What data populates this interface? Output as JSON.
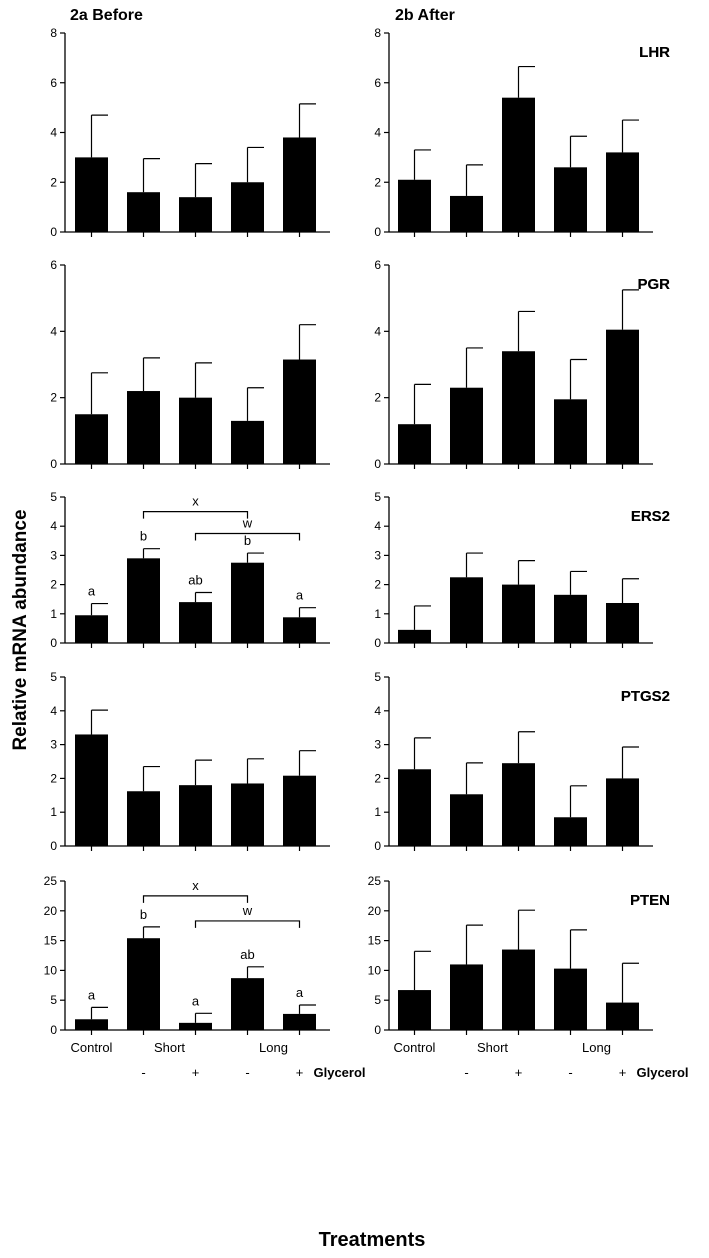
{
  "figure": {
    "col_titles": [
      "2a Before",
      "2b After"
    ],
    "ylabel": "Relative mRNA abundance",
    "xlabel": "Treatments",
    "x_groups": [
      "Control",
      "Short",
      "Long"
    ],
    "glycerol_signs": [
      "-",
      "+",
      "-",
      "+"
    ],
    "glycerol_label": "Glycerol"
  },
  "chart_data": [
    {
      "type": "bar",
      "gene": "LHR",
      "panel": "2a Before",
      "categories": [
        "Control",
        "Short -",
        "Short +",
        "Long -",
        "Long +"
      ],
      "values": [
        3.0,
        1.6,
        1.4,
        2.0,
        3.8
      ],
      "errors": [
        1.7,
        1.35,
        1.35,
        1.4,
        1.35
      ],
      "ylim": [
        0,
        8
      ],
      "yticks": [
        0,
        2,
        4,
        6,
        8
      ],
      "letters": []
    },
    {
      "type": "bar",
      "gene": "LHR",
      "panel": "2b After",
      "categories": [
        "Control",
        "Short -",
        "Short +",
        "Long -",
        "Long +"
      ],
      "values": [
        2.1,
        1.45,
        5.4,
        2.6,
        3.2
      ],
      "errors": [
        1.2,
        1.25,
        1.25,
        1.25,
        1.3
      ],
      "ylim": [
        0,
        8
      ],
      "yticks": [
        0,
        2,
        4,
        6,
        8
      ],
      "letters": []
    },
    {
      "type": "bar",
      "gene": "PGR",
      "panel": "2a Before",
      "categories": [
        "Control",
        "Short -",
        "Short +",
        "Long -",
        "Long +"
      ],
      "values": [
        1.5,
        2.2,
        2.0,
        1.3,
        3.15
      ],
      "errors": [
        1.25,
        1.0,
        1.05,
        1.0,
        1.05
      ],
      "ylim": [
        0,
        6
      ],
      "yticks": [
        0,
        2,
        4,
        6
      ],
      "letters": []
    },
    {
      "type": "bar",
      "gene": "PGR",
      "panel": "2b After",
      "categories": [
        "Control",
        "Short -",
        "Short +",
        "Long -",
        "Long +"
      ],
      "values": [
        1.2,
        2.3,
        3.4,
        1.95,
        4.05
      ],
      "errors": [
        1.2,
        1.2,
        1.2,
        1.2,
        1.2
      ],
      "ylim": [
        0,
        6
      ],
      "yticks": [
        0,
        2,
        4,
        6
      ],
      "letters": []
    },
    {
      "type": "bar",
      "gene": "ERS2",
      "panel": "2a Before",
      "categories": [
        "Control",
        "Short -",
        "Short +",
        "Long -",
        "Long +"
      ],
      "values": [
        0.95,
        2.9,
        1.4,
        2.75,
        0.88
      ],
      "errors": [
        0.4,
        0.33,
        0.33,
        0.33,
        0.33
      ],
      "ylim": [
        0,
        5
      ],
      "yticks": [
        0,
        1,
        2,
        3,
        4,
        5
      ],
      "letters": [
        "a",
        "b",
        "ab",
        "b",
        "a"
      ],
      "brackets": [
        {
          "from": 1,
          "to": 3,
          "label": "x",
          "y": 4.5
        },
        {
          "from": 2,
          "to": 4,
          "label": "w",
          "y": 3.75
        }
      ]
    },
    {
      "type": "bar",
      "gene": "ERS2",
      "panel": "2b After",
      "categories": [
        "Control",
        "Short -",
        "Short +",
        "Long -",
        "Long +"
      ],
      "values": [
        0.45,
        2.25,
        2.0,
        1.65,
        1.37
      ],
      "errors": [
        0.82,
        0.83,
        0.82,
        0.8,
        0.83
      ],
      "ylim": [
        0,
        5
      ],
      "yticks": [
        0,
        1,
        2,
        3,
        4,
        5
      ],
      "letters": []
    },
    {
      "type": "bar",
      "gene": "PTGS2",
      "panel": "2a Before",
      "categories": [
        "Control",
        "Short -",
        "Short +",
        "Long -",
        "Long +"
      ],
      "values": [
        3.3,
        1.62,
        1.8,
        1.85,
        2.08
      ],
      "errors": [
        0.72,
        0.73,
        0.74,
        0.73,
        0.74
      ],
      "ylim": [
        0,
        5
      ],
      "yticks": [
        0,
        1,
        2,
        3,
        4,
        5
      ],
      "letters": []
    },
    {
      "type": "bar",
      "gene": "PTGS2",
      "panel": "2b After",
      "categories": [
        "Control",
        "Short -",
        "Short +",
        "Long -",
        "Long +"
      ],
      "values": [
        2.27,
        1.53,
        2.45,
        0.85,
        2.0
      ],
      "errors": [
        0.93,
        0.93,
        0.93,
        0.93,
        0.93
      ],
      "ylim": [
        0,
        5
      ],
      "yticks": [
        0,
        1,
        2,
        3,
        4,
        5
      ],
      "letters": []
    },
    {
      "type": "bar",
      "gene": "PTEN",
      "panel": "2a Before",
      "categories": [
        "Control",
        "Short -",
        "Short +",
        "Long -",
        "Long +"
      ],
      "values": [
        1.8,
        15.4,
        1.2,
        8.7,
        2.7
      ],
      "errors": [
        2.0,
        1.9,
        1.6,
        1.9,
        1.5
      ],
      "ylim": [
        0,
        25
      ],
      "yticks": [
        0,
        5,
        10,
        15,
        20,
        25
      ],
      "letters": [
        "a",
        "b",
        "a",
        "ab",
        "a"
      ],
      "brackets": [
        {
          "from": 1,
          "to": 3,
          "label": "x",
          "y": 22.5
        },
        {
          "from": 2,
          "to": 4,
          "label": "w",
          "y": 18.3
        }
      ]
    },
    {
      "type": "bar",
      "gene": "PTEN",
      "panel": "2b After",
      "categories": [
        "Control",
        "Short -",
        "Short +",
        "Long -",
        "Long +"
      ],
      "values": [
        6.7,
        11.0,
        13.5,
        10.3,
        4.6
      ],
      "errors": [
        6.5,
        6.6,
        6.6,
        6.5,
        6.6
      ],
      "ylim": [
        0,
        25
      ],
      "yticks": [
        0,
        5,
        10,
        15,
        20,
        25
      ],
      "letters": []
    }
  ]
}
